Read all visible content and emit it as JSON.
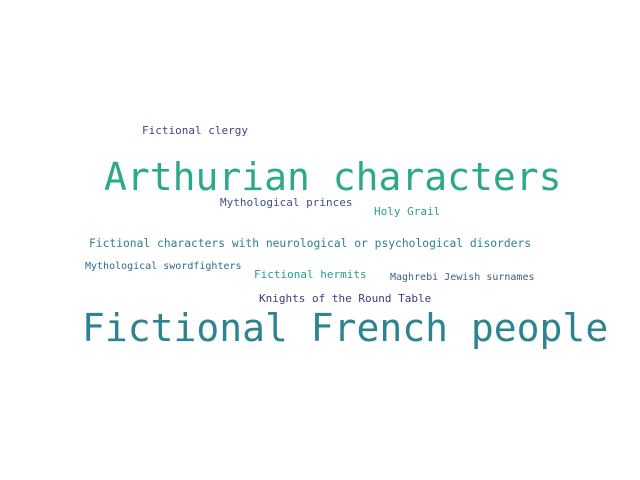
{
  "words": [
    {
      "text": "Arthurian characters",
      "color": "#2ca88a"
    },
    {
      "text": "Fictional French people",
      "color": "#2e8390"
    },
    {
      "text": "Fictional clergy",
      "color": "#4b3e7f"
    },
    {
      "text": "Mythological princes",
      "color": "#3d4f86"
    },
    {
      "text": "Holy Grail",
      "color": "#2b9c8c"
    },
    {
      "text": "Fictional characters with neurological or psychological disorders",
      "color": "#2d7f8e"
    },
    {
      "text": "Mythological swordfighters",
      "color": "#306a8e"
    },
    {
      "text": "Fictional hermits",
      "color": "#22a382"
    },
    {
      "text": "Maghrebi Jewish surnames",
      "color": "#3b5e8c"
    },
    {
      "text": "Knights of the Round Table",
      "color": "#44367f"
    }
  ]
}
